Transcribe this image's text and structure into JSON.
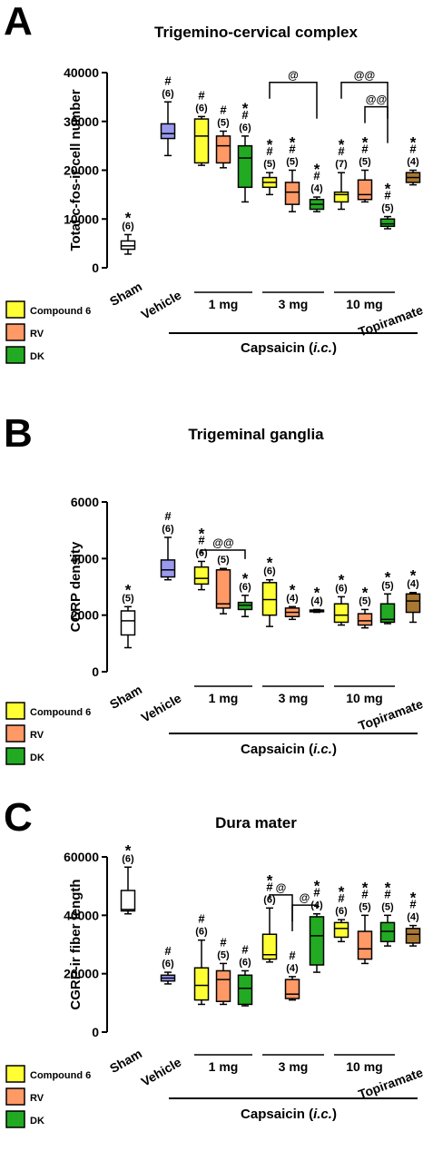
{
  "legend": {
    "items": [
      {
        "label": "Compound 6",
        "color": "#ffff33"
      },
      {
        "label": "RV",
        "color": "#ff9966"
      },
      {
        "label": "DK",
        "color": "#22aa22"
      }
    ]
  },
  "group_labels": {
    "sham": "Sham",
    "vehicle": "Vehicle",
    "dose1": "1 mg",
    "dose3": "3 mg",
    "dose10": "10 mg",
    "topiramate": "Topiramate",
    "capsaicin_prefix": "Capsaicin (",
    "capsaicin_italic": "i.c.",
    "capsaicin_suffix": ")"
  },
  "colors": {
    "sham": "#ffffff",
    "vehicle": "#9999ee",
    "compound6": "#ffff33",
    "rv": "#ff9966",
    "dk": "#22aa22",
    "topiramate": "#aa7733"
  },
  "chart_data": [
    {
      "panel_letter": "A",
      "type": "box",
      "title": "Trigemino-cervical complex",
      "ylabel": "Total c-fos-ir cell number",
      "ylim": [
        0,
        40000
      ],
      "yticks": [
        "0",
        "10000",
        "20000",
        "30000",
        "40000"
      ],
      "boxes": [
        {
          "group": "Sham",
          "min": 2800,
          "q1": 3800,
          "median": 4500,
          "q3": 5500,
          "max": 6800,
          "annot": [
            "*",
            "(6)"
          ]
        },
        {
          "group": "Vehicle",
          "min": 23000,
          "q1": 26500,
          "median": 27500,
          "q3": 29500,
          "max": 34000,
          "annot": [
            "#",
            "(6)"
          ]
        },
        {
          "group": "Compound 6 1 mg",
          "min": 21000,
          "q1": 21500,
          "median": 27000,
          "q3": 30500,
          "max": 31000,
          "annot": [
            "#",
            "(6)"
          ]
        },
        {
          "group": "RV 1 mg",
          "min": 20500,
          "q1": 21500,
          "median": 25000,
          "q3": 27000,
          "max": 28000,
          "annot": [
            "#",
            "(5)"
          ]
        },
        {
          "group": "DK 1 mg",
          "min": 13500,
          "q1": 16500,
          "median": 22500,
          "q3": 25000,
          "max": 27000,
          "annot": [
            "*",
            "#",
            "(6)"
          ]
        },
        {
          "group": "Compound 6 3 mg",
          "min": 15000,
          "q1": 16500,
          "median": 17500,
          "q3": 18500,
          "max": 19500,
          "annot": [
            "*",
            "#",
            "(5)"
          ]
        },
        {
          "group": "RV 3 mg",
          "min": 11500,
          "q1": 13000,
          "median": 15500,
          "q3": 17500,
          "max": 20000,
          "annot": [
            "*",
            "#",
            "(5)"
          ]
        },
        {
          "group": "DK 3 mg",
          "min": 11500,
          "q1": 12000,
          "median": 13000,
          "q3": 14000,
          "max": 14500,
          "annot": [
            "*",
            "#",
            "(4)"
          ]
        },
        {
          "group": "Compound 6 10 mg",
          "min": 12000,
          "q1": 13500,
          "median": 15000,
          "q3": 15500,
          "max": 19500,
          "annot": [
            "*",
            "#",
            "(7)"
          ]
        },
        {
          "group": "RV 10 mg",
          "min": 13500,
          "q1": 14000,
          "median": 15000,
          "q3": 18000,
          "max": 20000,
          "annot": [
            "*",
            "#",
            "(5)"
          ]
        },
        {
          "group": "DK 10 mg",
          "min": 8000,
          "q1": 8500,
          "median": 9000,
          "q3": 10000,
          "max": 10500,
          "annot": [
            "*",
            "#",
            "(5)"
          ]
        },
        {
          "group": "Topiramate",
          "min": 17000,
          "q1": 17500,
          "median": 18500,
          "q3": 19500,
          "max": 20000,
          "annot": [
            "*",
            "#",
            "(4)"
          ]
        }
      ],
      "brackets": [
        {
          "from": 5,
          "to": 7,
          "level": 38000,
          "label": "@"
        },
        {
          "from": 8,
          "to": 10,
          "level": 38000,
          "label": "@@"
        },
        {
          "from": 9,
          "to": 10,
          "level": 33000,
          "label": "@@"
        }
      ]
    },
    {
      "panel_letter": "B",
      "type": "box",
      "title": "Trigeminal ganglia",
      "ylabel": "CGRP density",
      "ylim": [
        0,
        6000
      ],
      "yticks": [
        "0",
        "2000",
        "4000",
        "6000"
      ],
      "boxes": [
        {
          "group": "Sham",
          "min": 850,
          "q1": 1300,
          "median": 1800,
          "q3": 2150,
          "max": 2300,
          "annot": [
            "*",
            "(5)"
          ]
        },
        {
          "group": "Vehicle",
          "min": 3250,
          "q1": 3350,
          "median": 3600,
          "q3": 3950,
          "max": 4750,
          "annot": [
            "#",
            "(6)"
          ]
        },
        {
          "group": "Compound 6 1 mg",
          "min": 2900,
          "q1": 3100,
          "median": 3300,
          "q3": 3700,
          "max": 3900,
          "annot": [
            "*",
            "#",
            "(6)"
          ]
        },
        {
          "group": "RV 1 mg",
          "min": 2050,
          "q1": 2250,
          "median": 2400,
          "q3": 3600,
          "max": 3650,
          "annot": [
            "(5)"
          ]
        },
        {
          "group": "DK 1 mg",
          "min": 1950,
          "q1": 2200,
          "median": 2350,
          "q3": 2450,
          "max": 2700,
          "annot": [
            "*",
            "(6)"
          ]
        },
        {
          "group": "Compound 6 3 mg",
          "min": 1600,
          "q1": 2000,
          "median": 2550,
          "q3": 3150,
          "max": 3250,
          "annot": [
            "*",
            "(6)"
          ]
        },
        {
          "group": "RV 3 mg",
          "min": 1850,
          "q1": 1950,
          "median": 2100,
          "q3": 2250,
          "max": 2300,
          "annot": [
            "*",
            "(4)"
          ]
        },
        {
          "group": "DK 3 mg",
          "min": 2100,
          "q1": 2120,
          "median": 2150,
          "q3": 2180,
          "max": 2200,
          "annot": [
            "*",
            "(4)"
          ]
        },
        {
          "group": "Compound 6 10 mg",
          "min": 1650,
          "q1": 1750,
          "median": 2000,
          "q3": 2400,
          "max": 2650,
          "annot": [
            "*",
            "(6)"
          ]
        },
        {
          "group": "RV 10 mg",
          "min": 1550,
          "q1": 1650,
          "median": 1800,
          "q3": 2050,
          "max": 2200,
          "annot": [
            "*",
            "(5)"
          ]
        },
        {
          "group": "DK 10 mg",
          "min": 1700,
          "q1": 1750,
          "median": 1850,
          "q3": 2400,
          "max": 2750,
          "annot": [
            "*",
            "(5)"
          ]
        },
        {
          "group": "Topiramate",
          "min": 1750,
          "q1": 2100,
          "median": 2500,
          "q3": 2750,
          "max": 2800,
          "annot": [
            "*",
            "(4)"
          ]
        }
      ],
      "brackets": [
        {
          "from": 2,
          "to": 4,
          "level": 4300,
          "label": "@@"
        }
      ]
    },
    {
      "panel_letter": "C",
      "type": "box",
      "title": "Dura mater",
      "ylabel": "CGRP-ir fiber length",
      "ylim": [
        0,
        60000
      ],
      "yticks": [
        "0",
        "20000",
        "40000",
        "60000"
      ],
      "boxes": [
        {
          "group": "Sham",
          "min": 40500,
          "q1": 41500,
          "median": 42000,
          "q3": 48500,
          "max": 56500,
          "annot": [
            "*",
            "(6)"
          ]
        },
        {
          "group": "Vehicle",
          "min": 16500,
          "q1": 17500,
          "median": 18500,
          "q3": 19500,
          "max": 20500,
          "annot": [
            "#",
            "(6)"
          ]
        },
        {
          "group": "Compound 6 1 mg",
          "min": 9500,
          "q1": 11000,
          "median": 16000,
          "q3": 22000,
          "max": 31500,
          "annot": [
            "#",
            "(6)"
          ]
        },
        {
          "group": "RV 1 mg",
          "min": 9500,
          "q1": 10500,
          "median": 18000,
          "q3": 21000,
          "max": 23500,
          "annot": [
            "#",
            "(5)"
          ]
        },
        {
          "group": "DK 1 mg",
          "min": 9000,
          "q1": 9500,
          "median": 15000,
          "q3": 19500,
          "max": 21000,
          "annot": [
            "#",
            "(6)"
          ]
        },
        {
          "group": "Compound 6 3 mg",
          "min": 24000,
          "q1": 25000,
          "median": 26500,
          "q3": 33500,
          "max": 42500,
          "annot": [
            "*",
            "#",
            "(6)"
          ]
        },
        {
          "group": "RV 3 mg",
          "min": 11000,
          "q1": 11500,
          "median": 13000,
          "q3": 18000,
          "max": 19000,
          "annot": [
            "#",
            "(4)"
          ]
        },
        {
          "group": "DK 3 mg",
          "min": 20500,
          "q1": 23000,
          "median": 33000,
          "q3": 39500,
          "max": 40500,
          "annot": [
            "*",
            "#",
            "(4)"
          ]
        },
        {
          "group": "Compound 6 10 mg",
          "min": 31000,
          "q1": 32500,
          "median": 35500,
          "q3": 37500,
          "max": 38500,
          "annot": [
            "*",
            "#",
            "(6)"
          ]
        },
        {
          "group": "RV 10 mg",
          "min": 23500,
          "q1": 25000,
          "median": 28500,
          "q3": 34500,
          "max": 40000,
          "annot": [
            "*",
            "#",
            "(5)"
          ]
        },
        {
          "group": "DK 10 mg",
          "min": 29500,
          "q1": 31000,
          "median": 34500,
          "q3": 37500,
          "max": 40000,
          "annot": [
            "*",
            "#",
            "(5)"
          ]
        },
        {
          "group": "Topiramate",
          "min": 29500,
          "q1": 30500,
          "median": 33500,
          "q3": 35500,
          "max": 36500,
          "annot": [
            "*",
            "#",
            "(4)"
          ]
        }
      ],
      "brackets": [
        {
          "from": 5,
          "to": 6,
          "level": 47000,
          "label": "@"
        },
        {
          "from": 6,
          "to": 7,
          "level": 43500,
          "label": "@"
        }
      ]
    }
  ]
}
